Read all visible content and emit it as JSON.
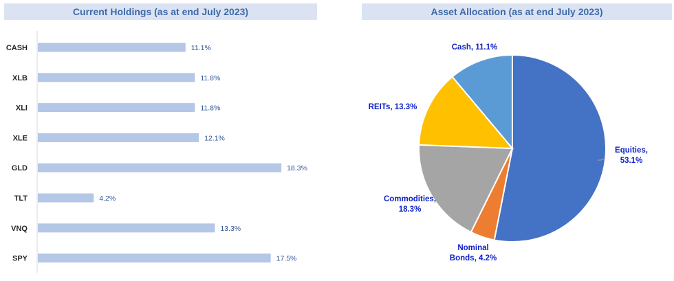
{
  "left_chart": {
    "title": "Current Holdings (as at end July 2023)"
  },
  "right_chart": {
    "title": "Asset Allocation (as at end July 2023)"
  },
  "colors": {
    "bar": "#b4c7e7",
    "bar_label": "#2f5597",
    "pie_label": "#0f22c7",
    "title_bg": "#dbe3f3",
    "title_text": "#3e6aa8"
  },
  "chart_data": [
    {
      "type": "bar",
      "orientation": "horizontal",
      "title": "Current Holdings (as at end July 2023)",
      "categories": [
        "CASH",
        "XLB",
        "XLI",
        "XLE",
        "GLD",
        "TLT",
        "VNQ",
        "SPY"
      ],
      "values": [
        11.1,
        11.8,
        11.8,
        12.1,
        18.3,
        4.2,
        13.3,
        17.5
      ],
      "labels": [
        "11.1%",
        "11.8%",
        "11.8%",
        "12.1%",
        "18.3%",
        "4.2%",
        "13.3%",
        "17.5%"
      ],
      "unit": "%",
      "grid": false,
      "legend": "none"
    },
    {
      "type": "pie",
      "title": "Asset Allocation (as at end July 2023)",
      "slices": [
        {
          "name": "Equities",
          "value": 53.1,
          "label_lines": [
            "Equities,",
            "53.1%"
          ],
          "color": "#4472c4"
        },
        {
          "name": "Nominal Bonds",
          "value": 4.2,
          "label_lines": [
            "Nominal",
            "Bonds, 4.2%"
          ],
          "color": "#ed7d31"
        },
        {
          "name": "Commodities",
          "value": 18.3,
          "label_lines": [
            "Commodities,",
            "18.3%"
          ],
          "color": "#a5a5a5"
        },
        {
          "name": "REITs",
          "value": 13.3,
          "label_lines": [
            "REITs, 13.3%"
          ],
          "color": "#ffc000"
        },
        {
          "name": "Cash",
          "value": 11.1,
          "label_lines": [
            "Cash, 11.1%"
          ],
          "color": "#5b9bd5"
        }
      ],
      "start": "12 o'clock, clockwise",
      "legend": "none"
    }
  ]
}
